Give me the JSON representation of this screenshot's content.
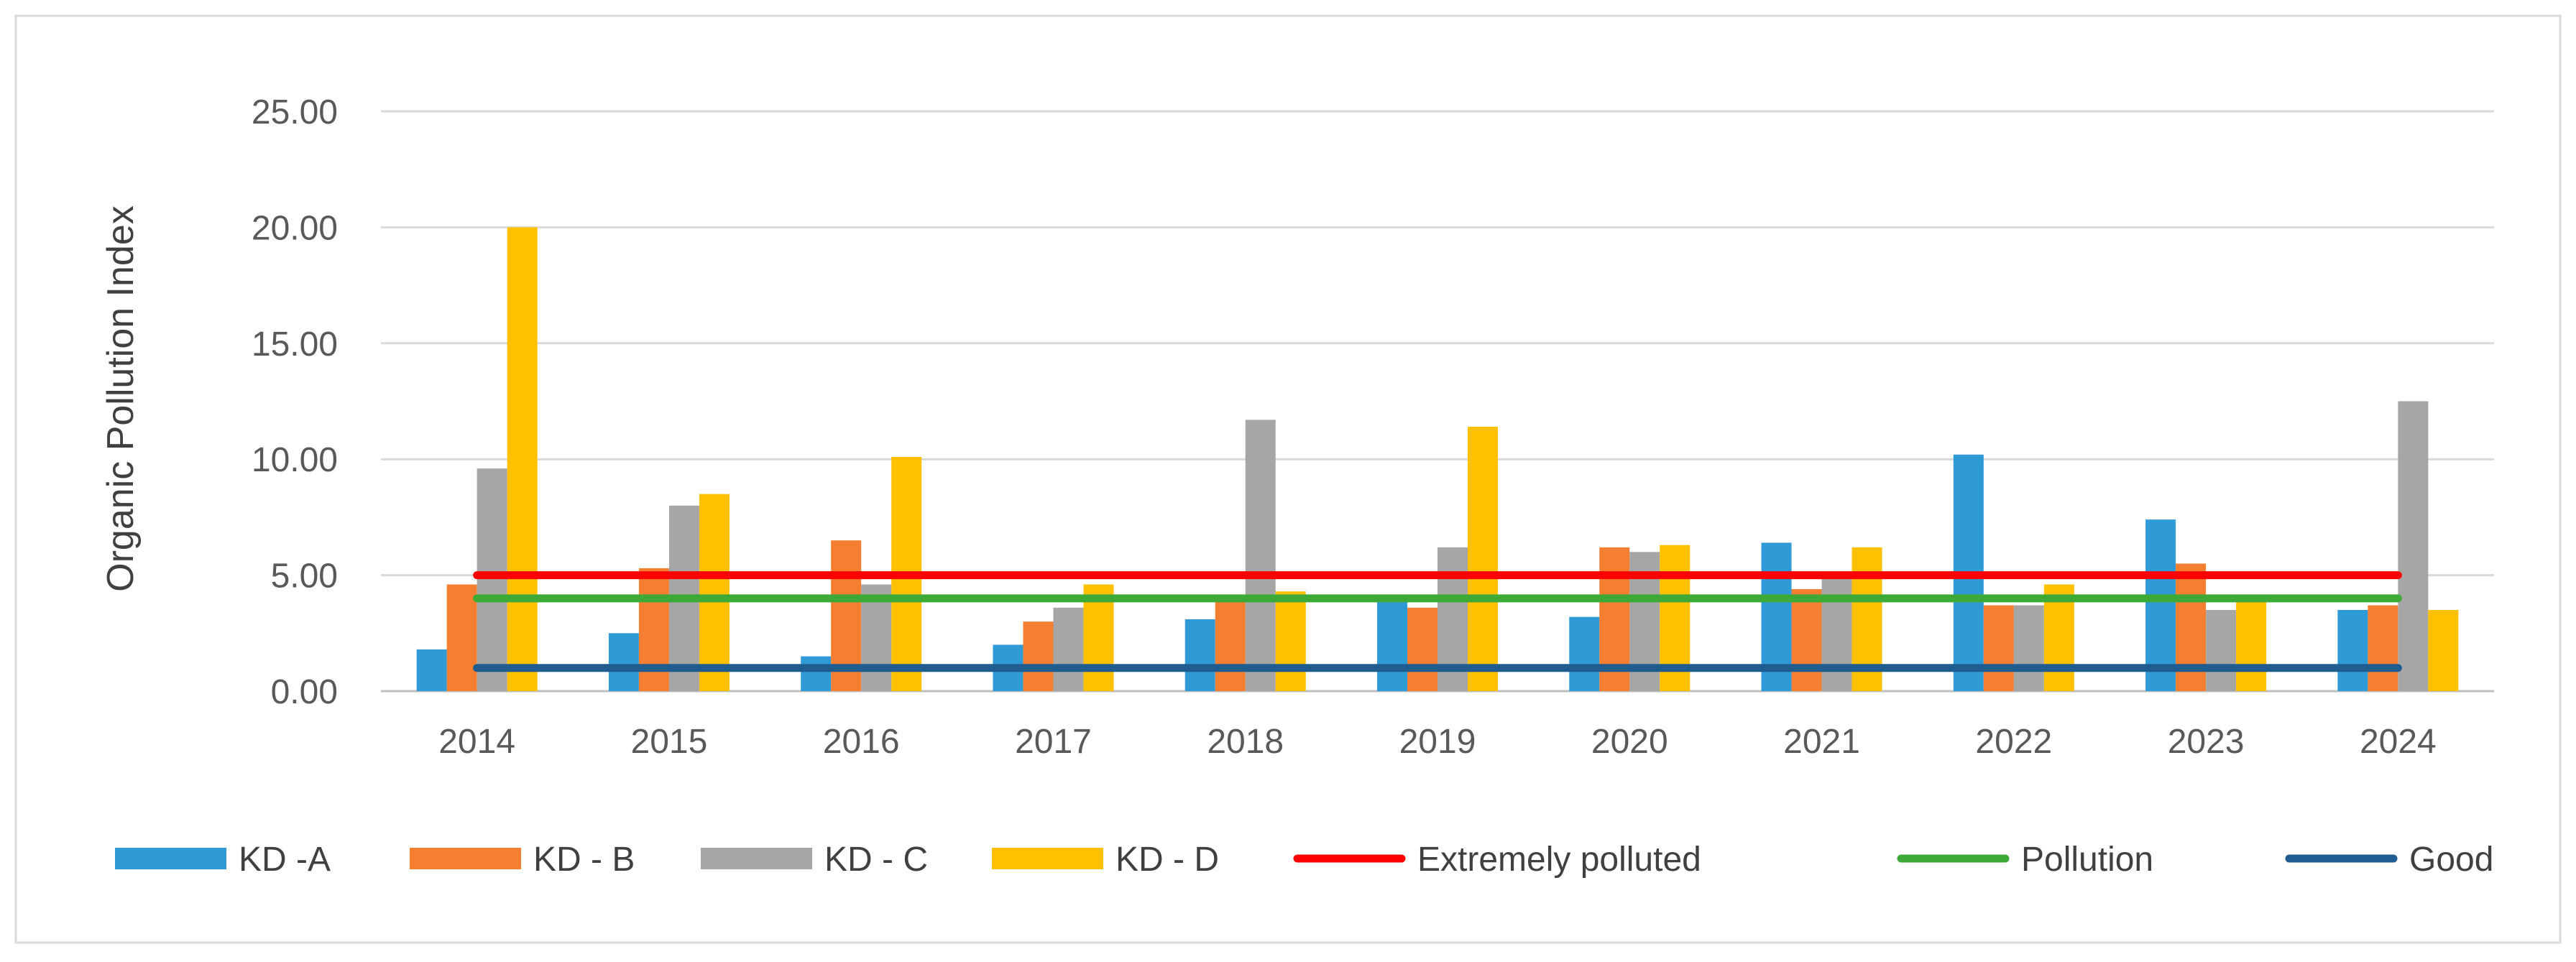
{
  "chart_data": {
    "type": "bar",
    "title": "",
    "xlabel": "",
    "ylabel": "Organic Pollution Index",
    "ylim": [
      0,
      25
    ],
    "yticks": [
      "0.00",
      "5.00",
      "10.00",
      "15.00",
      "20.00",
      "25.00"
    ],
    "categories": [
      "2014",
      "2015",
      "2016",
      "2017",
      "2018",
      "2019",
      "2020",
      "2021",
      "2022",
      "2023",
      "2024"
    ],
    "grid": "horizontal",
    "legend_position": "bottom",
    "series": [
      {
        "name": "KD -A",
        "color": "#2E9BD6",
        "values": [
          1.8,
          2.5,
          1.5,
          2.0,
          3.1,
          4.0,
          3.2,
          6.4,
          10.2,
          7.4,
          3.5
        ]
      },
      {
        "name": "KD - B",
        "color": "#F47F30",
        "values": [
          4.6,
          5.3,
          6.5,
          3.0,
          4.0,
          3.6,
          6.2,
          4.4,
          3.7,
          5.5,
          3.7
        ]
      },
      {
        "name": "KD - C",
        "color": "#A6A6A6",
        "values": [
          9.6,
          8.0,
          4.6,
          3.6,
          11.7,
          6.2,
          6.0,
          5.0,
          3.7,
          3.5,
          12.5
        ]
      },
      {
        "name": "KD - D",
        "color": "#FFC000",
        "values": [
          20.0,
          8.5,
          10.1,
          4.6,
          4.3,
          11.4,
          6.3,
          6.2,
          4.6,
          4.0,
          3.5
        ]
      }
    ],
    "reference_lines": [
      {
        "name": "Extremely polluted",
        "color": "#FF0000",
        "value": 5.0
      },
      {
        "name": "Pollution",
        "color": "#3DAA37",
        "value": 4.0
      },
      {
        "name": "Good",
        "color": "#1F5C8F",
        "value": 1.0
      }
    ]
  }
}
